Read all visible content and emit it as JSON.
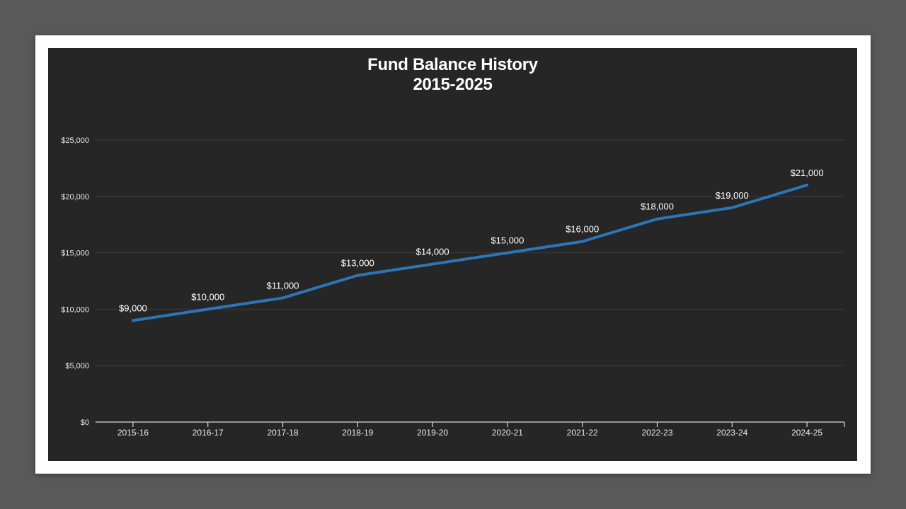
{
  "window": {
    "background_color": "#595959"
  },
  "slide": {
    "background_color": "#ffffff"
  },
  "chart_data": {
    "type": "line",
    "title": "Fund Balance History",
    "subtitle": "2015-2025",
    "background_color": "#262626",
    "line_color": "#2e75b6",
    "grid": true,
    "legend": "none",
    "markers": false,
    "categories": [
      "2015-16",
      "2016-17",
      "2017-18",
      "2018-19",
      "2019-20",
      "2020-21",
      "2021-22",
      "2022-23",
      "2023-24",
      "2024-25"
    ],
    "values": [
      9000,
      10000,
      11000,
      13000,
      14000,
      15000,
      16000,
      18000,
      19000,
      21000
    ],
    "data_labels": [
      "$9,000",
      "$10,000",
      "$11,000",
      "$13,000",
      "$14,000",
      "$15,000",
      "$16,000",
      "$18,000",
      "$19,000",
      "$21,000"
    ],
    "data_label_position": "above",
    "y_axis": {
      "tick_labels": [
        "$0",
        "$5,000",
        "$10,000",
        "$15,000",
        "$20,000",
        "$25,000"
      ],
      "tick_values": [
        0,
        5000,
        10000,
        15000,
        20000,
        25000
      ],
      "min": 0,
      "max": 25000
    },
    "text_color": "#ffffff"
  }
}
